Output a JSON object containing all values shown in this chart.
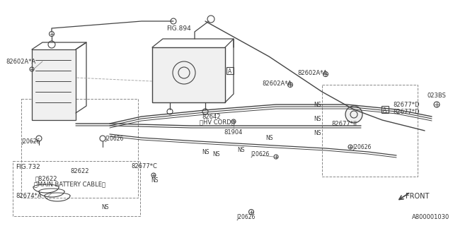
{
  "bg_color": "#ffffff",
  "line_color": "#444444",
  "text_color": "#333333",
  "part_number": "A800001030",
  "labels": {
    "82602A_A_tl": "82602A*A",
    "82622": "82622",
    "main_battery_cable": "〔82622",
    "main_battery_label": "〔MAIN BATTERY CABLE〕",
    "fig894": "FIG.894",
    "82642": "82642",
    "hv_cord": "〔HV CORD〕",
    "81904": "81904",
    "fig732": "FIG.732",
    "82677C": "82677*C",
    "82674A": "82674*A",
    "82602A_A_r1": "82602A*A",
    "82602A_A_r2": "82602A*A",
    "023BS": "023BS",
    "82677D_1": "82677*D",
    "82677D_2": "82677*D",
    "82677II": "82677*II",
    "FRONT": "FRONT",
    "A_box": "A",
    "A_box2": "A"
  }
}
